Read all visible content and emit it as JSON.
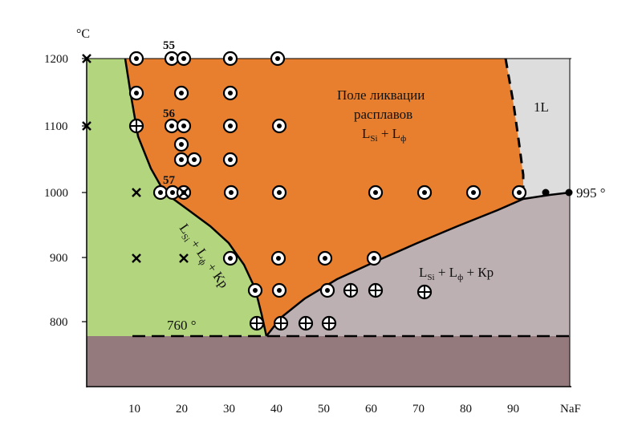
{
  "diagram": {
    "y_unit": "°C",
    "x_unit": "NaF",
    "x_ticks": [
      "10",
      "20",
      "30",
      "40",
      "50",
      "60",
      "70",
      "80",
      "90"
    ],
    "y_ticks": [
      "1200",
      "1100",
      "1000",
      "900",
      "800"
    ],
    "regions": {
      "liquation": {
        "line1": "Поле ликвации",
        "line2": "расплавов",
        "formula_L": "L",
        "formula_Si": "Si",
        "formula_plus": " + L",
        "formula_phi": "ф"
      },
      "one_liquid": {
        "label": "1L"
      },
      "left_triple": {
        "L1": "L",
        "sub1": "Si",
        "p1": " + L",
        "sub2": "ф",
        "p2": " + Кр"
      },
      "right_triple": {
        "L1": "L",
        "sub1": "Si",
        "p1": " + L",
        "sub2": "ф",
        "p2": " + Кр"
      }
    },
    "annotations": {
      "eutectic_temp": "760 °",
      "monotectic_temp": "995 °",
      "run_55": "55",
      "run_56": "56",
      "run_57": "57"
    },
    "colors": {
      "green": "#b2d57e",
      "orange": "#e87f2e",
      "light_gray": "#dddddd",
      "mauve": "#bdb0b3",
      "dark_mauve": "#957a7d"
    }
  }
}
